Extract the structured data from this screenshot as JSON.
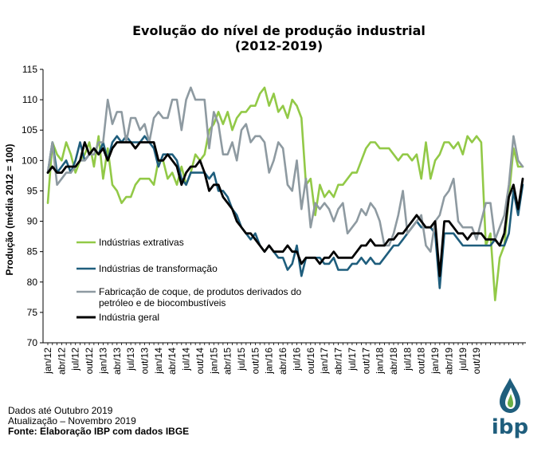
{
  "chart_data": {
    "type": "line",
    "title": "Evolução  do nível  de produção industrial",
    "subtitle": "(2012-2019)",
    "ylabel": "Produção (média 2012 = 100)",
    "ylim": [
      70,
      115
    ],
    "yticks": [
      "70",
      "75",
      "80",
      "85",
      "90",
      "95",
      "100",
      "105",
      "110",
      "115"
    ],
    "grid": false,
    "legend_position": "left-middle",
    "x_tick_labels": [
      "jan/12",
      "abr/12",
      "jul/12",
      "out/12",
      "jan/13",
      "abr/13",
      "jul/13",
      "out/13",
      "jan/14",
      "abr/14",
      "jul/14",
      "out/14",
      "jan/15",
      "abr/15",
      "jul/15",
      "out/15",
      "jan/16",
      "abr/16",
      "jul/16",
      "out/16",
      "jan/17",
      "abr/17",
      "jul/17",
      "out/17",
      "jan/18",
      "abr/18",
      "jul/18",
      "out/18",
      "jan/19",
      "abr/19",
      "jul/19",
      "out/19"
    ],
    "series": [
      {
        "name": "Indústrias extrativas",
        "color": "#92c947",
        "values": [
          93,
          103,
          101,
          100,
          103,
          101,
          98,
          100,
          101,
          103,
          99,
          104,
          97,
          102,
          96,
          95,
          93,
          94,
          94,
          96,
          97,
          97,
          97,
          96,
          100,
          100,
          97,
          98,
          96,
          99,
          96,
          98,
          101,
          100,
          101,
          105,
          106,
          108,
          106,
          108,
          105,
          107,
          108,
          108,
          109,
          109,
          111,
          112,
          109,
          111,
          108,
          109,
          107,
          110,
          109,
          107,
          96,
          97,
          91,
          96,
          94,
          95,
          94,
          96,
          96,
          97,
          98,
          98,
          100,
          102,
          103,
          103,
          102,
          102,
          102,
          101,
          100,
          101,
          101,
          100,
          101,
          97,
          103,
          97,
          100,
          101,
          103,
          103,
          102,
          103,
          101,
          104,
          103,
          104,
          103,
          86,
          88,
          77,
          84,
          86,
          94,
          102,
          99,
          99
        ]
      },
      {
        "name": "Indústrias de transformação",
        "color": "#1f5e7d",
        "values": [
          98,
          103,
          98,
          99,
          100,
          98,
          100,
          103,
          100,
          101,
          102,
          101,
          103,
          100,
          103,
          104,
          103,
          104,
          103,
          103,
          103,
          104,
          103,
          102,
          99,
          101,
          101,
          101,
          100,
          97,
          96,
          98,
          98,
          98,
          98,
          97,
          98,
          95,
          95,
          94,
          92,
          91,
          89,
          88,
          87,
          88,
          86,
          85,
          86,
          85,
          84,
          84,
          82,
          83,
          86,
          81,
          84,
          84,
          84,
          84,
          83,
          83,
          84,
          82,
          82,
          82,
          83,
          83,
          84,
          83,
          84,
          83,
          83,
          84,
          85,
          86,
          86,
          87,
          88,
          89,
          90,
          89,
          89,
          89,
          88,
          79,
          88,
          88,
          88,
          87,
          86,
          86,
          86,
          86,
          86,
          86,
          86,
          87,
          86,
          86,
          88,
          95,
          91,
          96
        ]
      },
      {
        "name": "Fabricação de coque, de produtos derivados do petróleo e de biocombustíveis",
        "color": "#8e9aa1",
        "values": [
          98,
          103,
          96,
          97,
          98,
          98,
          99,
          100,
          100,
          101,
          101,
          103,
          103,
          110,
          106,
          108,
          108,
          103,
          107,
          107,
          105,
          106,
          103,
          107,
          108,
          107,
          107,
          110,
          110,
          105,
          110,
          112,
          110,
          110,
          110,
          102,
          108,
          106,
          101,
          101,
          103,
          100,
          105,
          106,
          103,
          104,
          104,
          103,
          98,
          100,
          103,
          102,
          96,
          95,
          100,
          92,
          97,
          89,
          93,
          92,
          93,
          92,
          90,
          92,
          93,
          88,
          89,
          90,
          92,
          91,
          93,
          92,
          90,
          86,
          86,
          88,
          91,
          95,
          88,
          89,
          90,
          91,
          86,
          85,
          90,
          91,
          94,
          95,
          97,
          90,
          89,
          89,
          89,
          87,
          90,
          93,
          93,
          87,
          89,
          91,
          96,
          104,
          100,
          99
        ]
      },
      {
        "name": "Indústria geral",
        "color": "#000000",
        "values": [
          98,
          99,
          98,
          98,
          99,
          99,
          99,
          100,
          103,
          101,
          102,
          101,
          102,
          100,
          102,
          103,
          103,
          103,
          103,
          102,
          103,
          103,
          103,
          103,
          100,
          100,
          101,
          100,
          99,
          96,
          98,
          99,
          99,
          100,
          98,
          95,
          96,
          96,
          94,
          93,
          92,
          90,
          89,
          88,
          88,
          87,
          86,
          85,
          86,
          85,
          85,
          85,
          86,
          85,
          85,
          83,
          84,
          84,
          84,
          83,
          84,
          84,
          85,
          84,
          84,
          84,
          84,
          85,
          86,
          86,
          87,
          86,
          86,
          86,
          87,
          87,
          88,
          88,
          89,
          90,
          91,
          90,
          89,
          89,
          90,
          81,
          90,
          90,
          89,
          88,
          88,
          87,
          88,
          88,
          88,
          87,
          87,
          87,
          86,
          88,
          94,
          96,
          92,
          97
        ]
      }
    ]
  },
  "footer": {
    "line1": "Dados até Outubro 2019",
    "line2": "Atualização – Novembro 2019",
    "line3": "Fonte: Elaboração IBP com dados IBGE"
  },
  "logo": {
    "text": "ibp",
    "drop_colors": [
      "#1f5e7d",
      "#6aaf45"
    ]
  }
}
